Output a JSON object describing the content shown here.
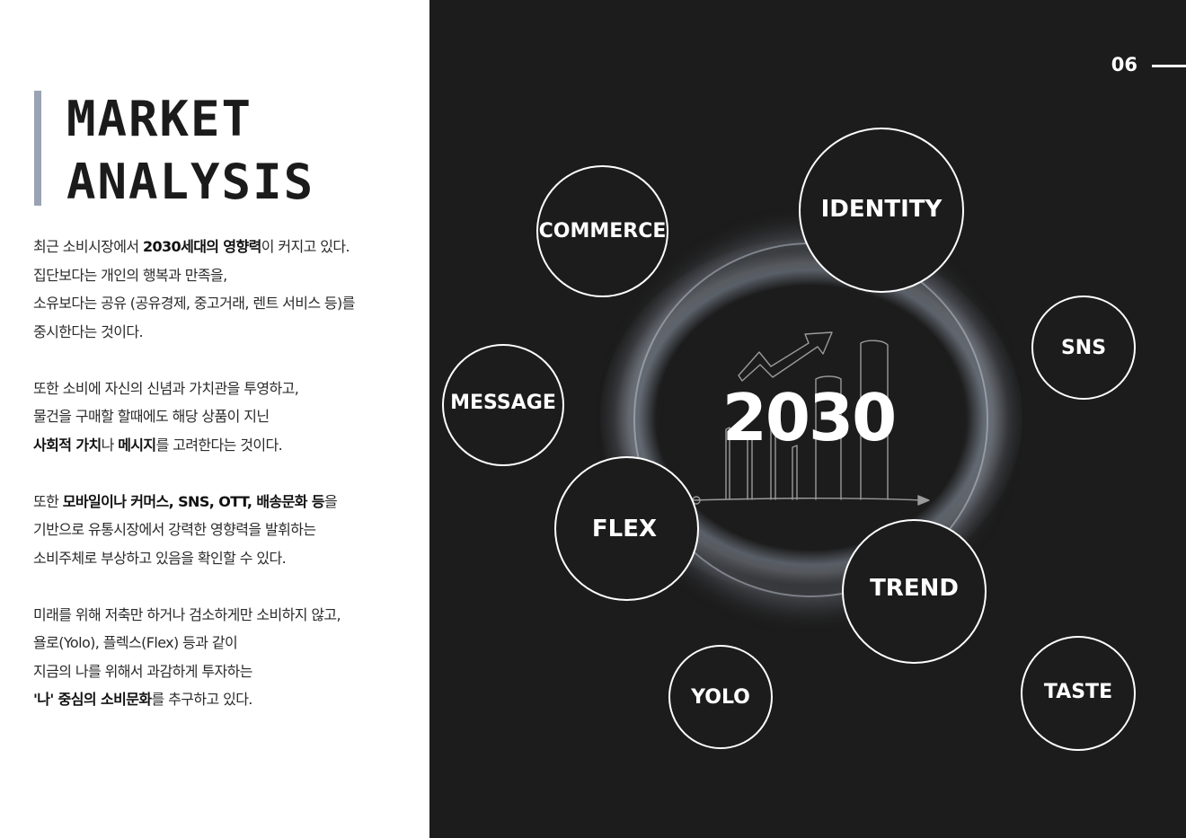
{
  "title": {
    "line1": "MARKET",
    "line2": "ANALYSIS"
  },
  "paragraphs": [
    {
      "lines": [
        [
          {
            "t": "최근 소비시장에서 "
          },
          {
            "t": "2030세대의 영향력",
            "b": true
          },
          {
            "t": "이 커지고 있다."
          }
        ],
        [
          {
            "t": "집단보다는 개인의 행복과 만족을,"
          }
        ],
        [
          {
            "t": "소유보다는 공유 (공유경제, 중고거래, 렌트 서비스 등)를"
          }
        ],
        [
          {
            "t": "중시한다는 것이다."
          }
        ]
      ]
    },
    {
      "lines": [
        [
          {
            "t": "또한 소비에 자신의 신념과 가치관을 투영하고,"
          }
        ],
        [
          {
            "t": "물건을 구매할 할때에도 해당 상품이 지닌"
          }
        ],
        [
          {
            "t": "사회적 가치",
            "b": true
          },
          {
            "t": "나 "
          },
          {
            "t": "메시지",
            "b": true
          },
          {
            "t": "를 고려한다는 것이다."
          }
        ]
      ]
    },
    {
      "lines": [
        [
          {
            "t": "또한 "
          },
          {
            "t": "모바일이나 커머스, SNS, OTT, 배송문화 등",
            "b": true
          },
          {
            "t": "을"
          }
        ],
        [
          {
            "t": "기반으로 유통시장에서 강력한 영향력을 발휘하는"
          }
        ],
        [
          {
            "t": "소비주체로 부상하고 있음을 확인할 수 있다."
          }
        ]
      ]
    },
    {
      "lines": [
        [
          {
            "t": "미래를 위해 저축만 하거나 검소하게만 소비하지 않고,"
          }
        ],
        [
          {
            "t": "욜로(Yolo), 플렉스(Flex) 등과 같이"
          }
        ],
        [
          {
            "t": "지금의 나를 위해서 과감하게 투자하는"
          }
        ],
        [
          {
            "t": "'나' 중심의 소비문화",
            "b": true
          },
          {
            "t": "를 추구하고 있다."
          }
        ]
      ]
    }
  ],
  "page_number": "06",
  "center_label": "2030",
  "keywords": {
    "commerce": "COMMERCE",
    "identity": "IDENTITY",
    "sns": "SNS",
    "message": "MESSAGE",
    "flex": "FLEX",
    "trend": "TREND",
    "yolo": "YOLO",
    "taste": "TASTE"
  },
  "colors": {
    "dark_bg": "#1c1c1c",
    "accent_bar": "#9aa3b4",
    "text": "#2a2a2a"
  },
  "icons": {
    "center": "rising-bar-chart-sketch-icon"
  }
}
